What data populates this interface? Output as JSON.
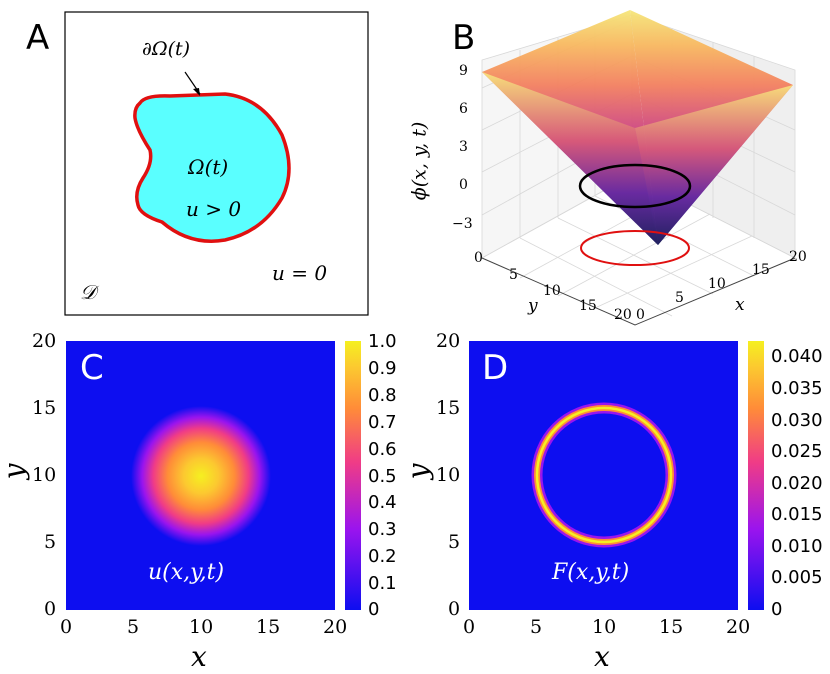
{
  "panel_a": {
    "letter": "A",
    "boundary_label": "∂Ω(t)",
    "omega_label": "Ω(t)",
    "inside_label": "u > 0",
    "outside_label": "u = 0",
    "domain_label": "𝒟",
    "colors": {
      "region_fill": "#5affff",
      "boundary": "#e01010"
    }
  },
  "panel_b": {
    "letter": "B",
    "zlabel": "ϕ(x, y, t)",
    "xlabel": "x",
    "ylabel": "y",
    "z_ticks": [
      "9",
      "6",
      "3",
      "0",
      "−3"
    ],
    "y_ticks": [
      "0",
      "5",
      "10",
      "15",
      "20"
    ],
    "x_ticks": [
      "0",
      "5",
      "10",
      "15",
      "20"
    ],
    "y_end_tick": "20",
    "x_start_tick": "0"
  },
  "panel_c": {
    "letter": "C",
    "function_label": "u(x,y,t)",
    "xlabel": "x",
    "ylabel": "y",
    "x_ticks": [
      "0",
      "5",
      "10",
      "15",
      "20"
    ],
    "y_ticks": [
      "0",
      "5",
      "10",
      "15",
      "20"
    ],
    "colorbar_ticks": [
      "1.0",
      "0.9",
      "0.8",
      "0.7",
      "0.6",
      "0.5",
      "0.4",
      "0.3",
      "0.2",
      "0.1",
      "0"
    ]
  },
  "panel_d": {
    "letter": "D",
    "function_label": "F(x,y,t)",
    "xlabel": "x",
    "ylabel": "y",
    "x_ticks": [
      "0",
      "5",
      "10",
      "15",
      "20"
    ],
    "y_ticks": [
      "0",
      "5",
      "10",
      "15",
      "20"
    ],
    "colorbar_ticks": [
      "0.040",
      "0.035",
      "0.030",
      "0.025",
      "0.020",
      "0.015",
      "0.010",
      "0.005",
      "0"
    ]
  },
  "colormap": {
    "low": "#0d0ef0",
    "mid1": "#8a00ff",
    "mid2": "#ff3aa0",
    "mid3": "#ff8a30",
    "high": "#f5f520"
  }
}
